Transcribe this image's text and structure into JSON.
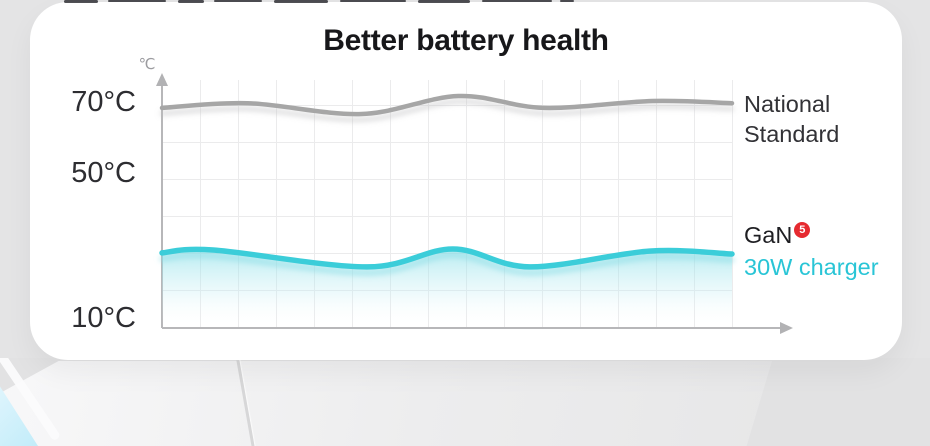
{
  "card": {
    "title": "Better battery health"
  },
  "y_axis": {
    "unit": "℃",
    "ticks": [
      "70°C",
      "50°C",
      "10°C"
    ]
  },
  "legend": {
    "national": {
      "line1": "National",
      "line2": "Standard"
    },
    "gan": {
      "name": "GaN",
      "footnote_number": "5",
      "footnote_bg": "#e62a30",
      "product": "30W charger",
      "product_color": "#29c5d6"
    }
  },
  "chart_data": {
    "type": "line",
    "title": "Better battery health",
    "xlabel": "",
    "ylabel": "℃",
    "ylim": [
      10,
      78
    ],
    "yticks": [
      10,
      50,
      70
    ],
    "grid": true,
    "legend_position": "right",
    "series": [
      {
        "name": "National Standard",
        "color": "#a6a6a6",
        "approx_temp_c": 70,
        "points": [
          [
            0.0,
            68.7
          ],
          [
            0.15,
            70.0
          ],
          [
            0.35,
            67.0
          ],
          [
            0.52,
            72.0
          ],
          [
            0.67,
            68.7
          ],
          [
            0.86,
            70.6
          ],
          [
            1.0,
            70.0
          ]
        ]
      },
      {
        "name": "GaN 30W charger",
        "color": "#3bcdd9",
        "approx_temp_c": 28,
        "fill_below": true,
        "points": [
          [
            0.0,
            28.3
          ],
          [
            0.09,
            29.1
          ],
          [
            0.36,
            24.4
          ],
          [
            0.51,
            29.4
          ],
          [
            0.645,
            24.4
          ],
          [
            0.855,
            28.8
          ],
          [
            1.0,
            28.0
          ]
        ]
      }
    ]
  }
}
